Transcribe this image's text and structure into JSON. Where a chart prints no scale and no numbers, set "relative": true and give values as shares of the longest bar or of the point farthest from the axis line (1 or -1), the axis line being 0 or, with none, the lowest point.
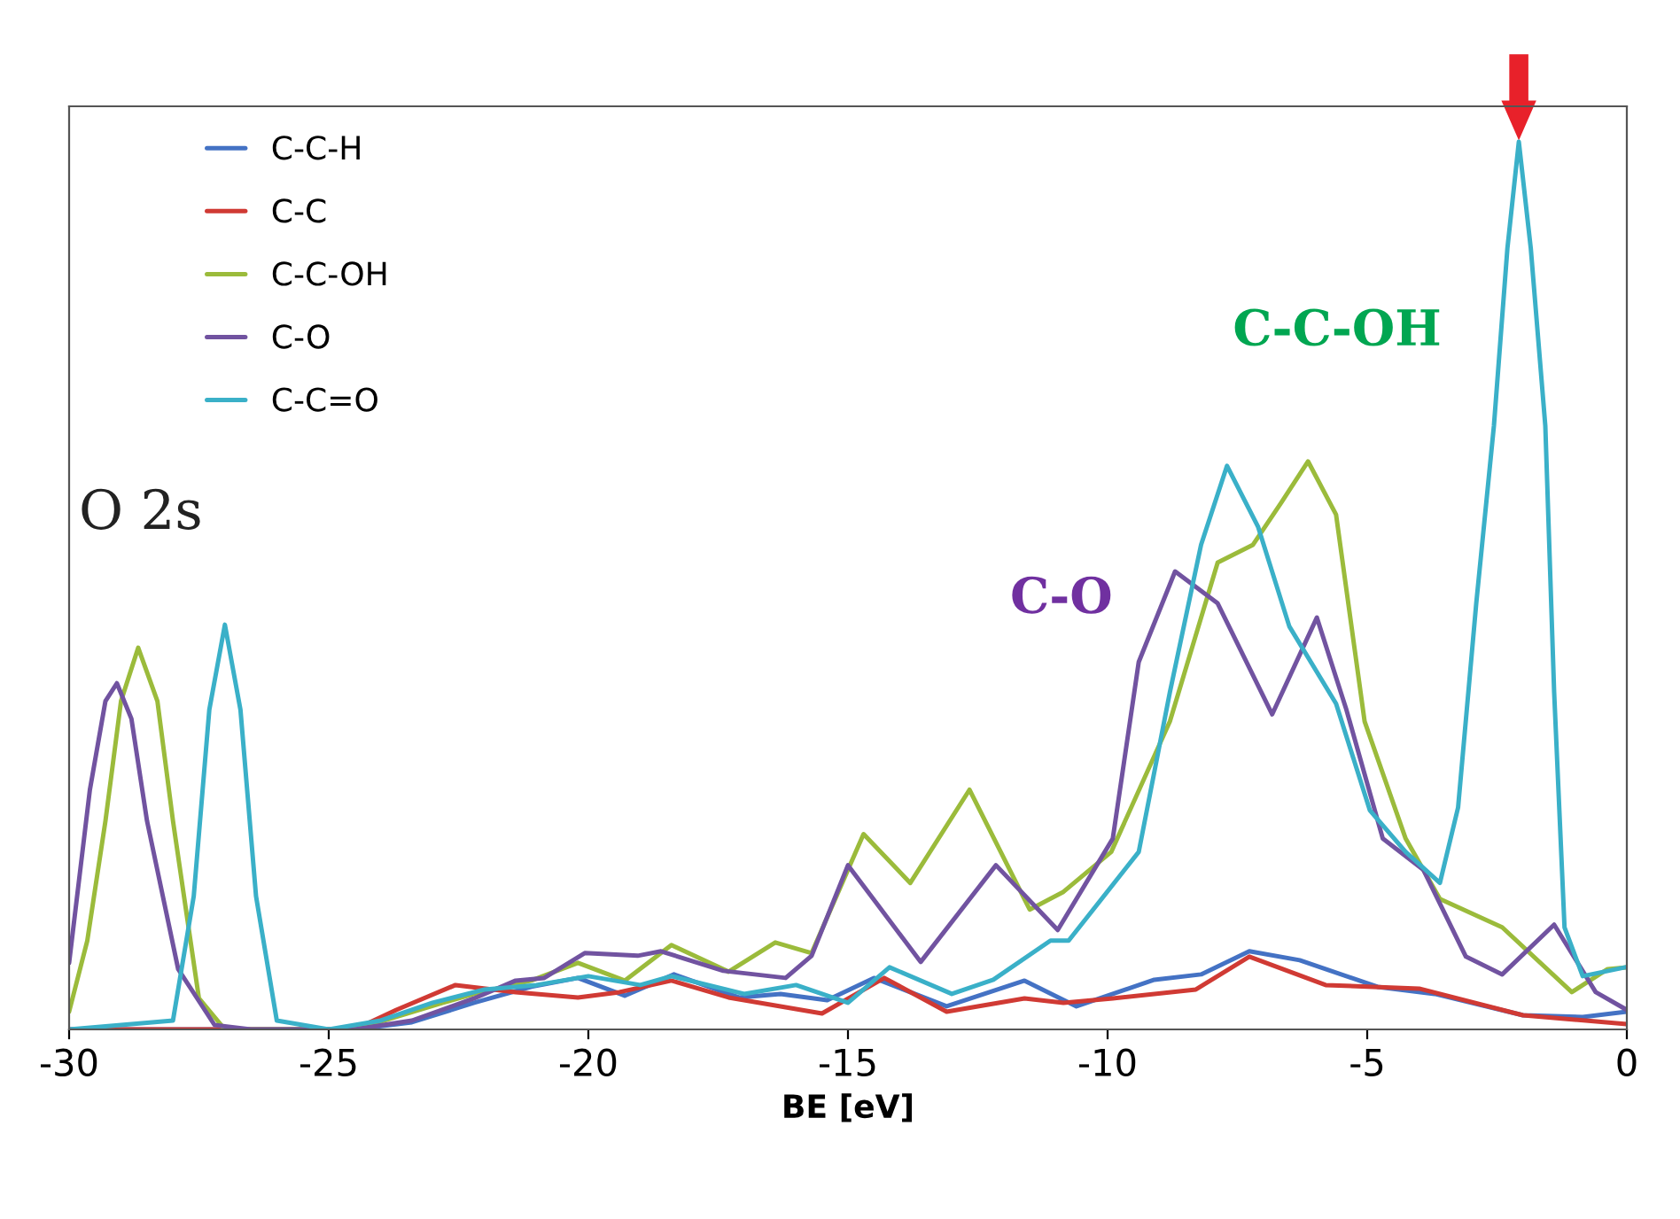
{
  "chart_data": {
    "type": "line",
    "relative": true,
    "xlabel": "BE [eV]",
    "xlim": [
      -30,
      0
    ],
    "xticks": [
      -30,
      -25,
      -20,
      -15,
      -10,
      -5,
      0
    ],
    "tick_labels": "x",
    "grid": false,
    "legend": "top left",
    "marker": "none",
    "line_style": "solid",
    "series": [
      {
        "name": "C-C-H",
        "color": "#4472c4",
        "x": [
          -30,
          -25,
          -24.5,
          -23.4,
          -22.2,
          -21.1,
          -20.2,
          -19.3,
          -18.35,
          -17.1,
          -16.3,
          -15.4,
          -14.5,
          -13.1,
          -11.6,
          -10.6,
          -9.1,
          -8.2,
          -7.27,
          -6.3,
          -4.8,
          -3.7,
          -2.0,
          -0.85,
          0
        ],
        "values": [
          0,
          0,
          0,
          0.008,
          0.03,
          0.048,
          0.058,
          0.038,
          0.062,
          0.036,
          0.04,
          0.033,
          0.058,
          0.026,
          0.055,
          0.026,
          0.056,
          0.062,
          0.088,
          0.078,
          0.048,
          0.04,
          0.016,
          0.014,
          0.02
        ]
      },
      {
        "name": "C-C",
        "color": "#d03a34",
        "x": [
          -30,
          -25,
          -24.5,
          -23.7,
          -22.56,
          -21.4,
          -20.2,
          -19.4,
          -18.4,
          -17.3,
          -15.5,
          -14.3,
          -13.1,
          -11.6,
          -10.85,
          -9.9,
          -8.3,
          -7.27,
          -5.8,
          -4.0,
          -2.0,
          0
        ],
        "values": [
          0,
          0,
          0,
          0.022,
          0.05,
          0.042,
          0.036,
          0.042,
          0.055,
          0.036,
          0.018,
          0.058,
          0.02,
          0.035,
          0.03,
          0.035,
          0.045,
          0.082,
          0.05,
          0.046,
          0.016,
          0.006
        ]
      },
      {
        "name": "C-C-OH",
        "color": "#9bbb3b",
        "x": [
          -30,
          -29.65,
          -29.3,
          -29.0,
          -28.67,
          -28.3,
          -28.0,
          -27.5,
          -27.0,
          -24.5,
          -22.8,
          -22.2,
          -21.1,
          -20.2,
          -19.3,
          -18.4,
          -17.3,
          -16.4,
          -15.7,
          -14.7,
          -13.8,
          -12.66,
          -11.5,
          -10.85,
          -9.93,
          -8.8,
          -7.88,
          -7.2,
          -6.65,
          -6.14,
          -5.6,
          -5.05,
          -4.26,
          -3.6,
          -2.4,
          -1.06,
          -0.37,
          0
        ],
        "values": [
          0.02,
          0.1,
          0.235,
          0.37,
          0.43,
          0.37,
          0.235,
          0.035,
          0,
          0,
          0.03,
          0.04,
          0.055,
          0.075,
          0.055,
          0.095,
          0.065,
          0.098,
          0.086,
          0.22,
          0.165,
          0.27,
          0.135,
          0.155,
          0.2,
          0.347,
          0.526,
          0.546,
          0.594,
          0.64,
          0.58,
          0.347,
          0.215,
          0.147,
          0.115,
          0.042,
          0.068,
          0.07
        ]
      },
      {
        "name": "C-O",
        "color": "#7153a0",
        "x": [
          -30,
          -29.6,
          -29.3,
          -29.08,
          -28.8,
          -28.5,
          -27.9,
          -27.2,
          -26.5,
          -24.5,
          -23.4,
          -22.2,
          -21.4,
          -20.85,
          -20.07,
          -19.05,
          -18.6,
          -17.4,
          -16.2,
          -15.7,
          -15.0,
          -13.6,
          -12.15,
          -10.96,
          -9.9,
          -9.4,
          -8.7,
          -7.88,
          -6.83,
          -5.97,
          -5.4,
          -4.7,
          -3.92,
          -3.1,
          -2.4,
          -1.4,
          -0.6,
          0
        ],
        "values": [
          0.075,
          0.27,
          0.37,
          0.39,
          0.35,
          0.235,
          0.068,
          0.005,
          0,
          0,
          0.01,
          0.035,
          0.055,
          0.058,
          0.086,
          0.083,
          0.088,
          0.066,
          0.058,
          0.083,
          0.185,
          0.076,
          0.185,
          0.112,
          0.215,
          0.414,
          0.516,
          0.48,
          0.355,
          0.464,
          0.36,
          0.215,
          0.18,
          0.082,
          0.062,
          0.118,
          0.042,
          0.022
        ]
      },
      {
        "name": "C-C=O",
        "color": "#3ab0c8",
        "x": [
          -30,
          -28.0,
          -27.6,
          -27.3,
          -27.0,
          -26.7,
          -26.4,
          -26.0,
          -25,
          -24,
          -23,
          -22,
          -21,
          -20,
          -19,
          -18.4,
          -17,
          -16,
          -15,
          -14.2,
          -13,
          -12.2,
          -11.1,
          -10.75,
          -9.4,
          -8.8,
          -8.2,
          -7.7,
          -7.1,
          -6.5,
          -5.6,
          -4.95,
          -4.26,
          -3.6,
          -3.25,
          -2.9,
          -2.56,
          -2.3,
          -2.08,
          -1.85,
          -1.57,
          -1.4,
          -1.2,
          -0.85,
          -0.03
        ],
        "values": [
          0,
          0.01,
          0.15,
          0.36,
          0.456,
          0.36,
          0.15,
          0.01,
          0,
          0.01,
          0.03,
          0.045,
          0.05,
          0.06,
          0.05,
          0.06,
          0.04,
          0.05,
          0.03,
          0.07,
          0.04,
          0.056,
          0.1,
          0.1,
          0.2,
          0.38,
          0.546,
          0.635,
          0.566,
          0.454,
          0.367,
          0.247,
          0.2,
          0.165,
          0.25,
          0.48,
          0.68,
          0.88,
          1.0,
          0.88,
          0.68,
          0.38,
          0.115,
          0.06,
          0.07
        ]
      }
    ],
    "annotations": [
      "O 2s",
      "C-O",
      "C-C-OH"
    ]
  }
}
